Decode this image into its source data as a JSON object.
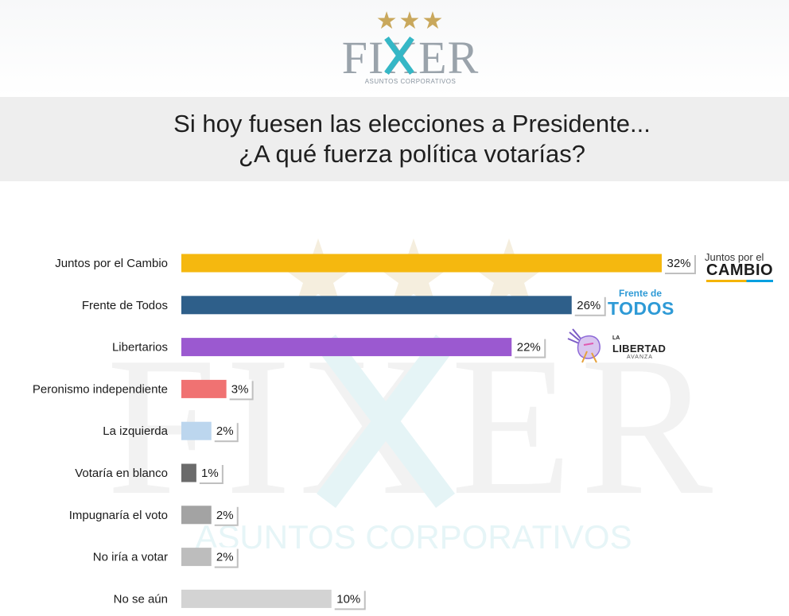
{
  "brand": {
    "stars": "★★★",
    "name": "FIXER",
    "subtitle": "ASUNTOS CORPORATIVOS"
  },
  "title": {
    "line1": "Si hoy fuesen las elecciones a Presidente...",
    "line2": "¿A qué fuerza política votarías?"
  },
  "party_logos": {
    "jxc": {
      "top": "Juntos por el",
      "bottom": "CAMBIO"
    },
    "fdt": {
      "top": "Frente de",
      "bottom": "TODOS"
    },
    "lla": {
      "small": "LA",
      "big": "LIBERTAD",
      "sub": "AVANZA"
    }
  },
  "chart_data": {
    "type": "bar",
    "orientation": "horizontal",
    "categories": [
      "Juntos por el Cambio",
      "Frente de Todos",
      "Libertarios",
      "Peronismo independiente",
      "La izquierda",
      "Votaría en blanco",
      "Impugnaría el voto",
      "No iría a votar",
      "No se aún"
    ],
    "values": [
      32,
      26,
      22,
      3,
      2,
      1,
      2,
      2,
      10
    ],
    "value_labels": [
      "32%",
      "26%",
      "22%",
      "3%",
      "2%",
      "1%",
      "2%",
      "2%",
      "10%"
    ],
    "colors": [
      "#f5b80f",
      "#2e5f8a",
      "#9b59d0",
      "#f07272",
      "#bcd6ee",
      "#6b6b6b",
      "#a3a3a3",
      "#bdbdbd",
      "#d3d3d3"
    ],
    "xlim": [
      0,
      32
    ],
    "grid": false,
    "legend": "none"
  }
}
